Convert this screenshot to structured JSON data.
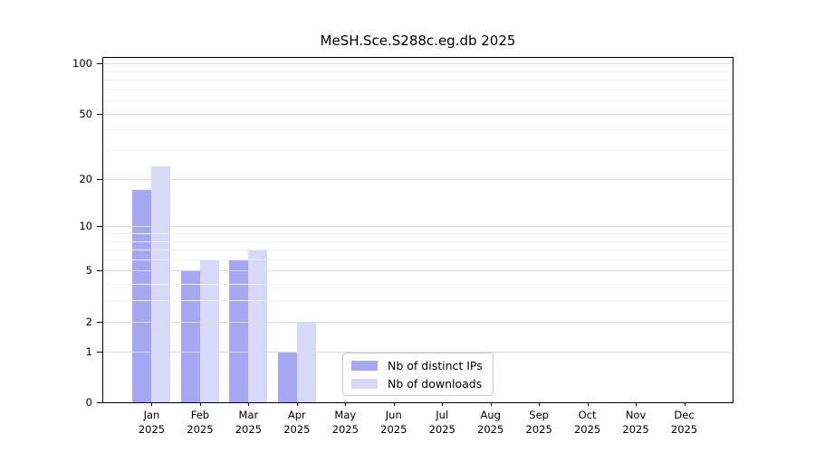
{
  "chart_data": {
    "type": "bar",
    "title": "MeSH.Sce.S288c.eg.db 2025",
    "categories": [
      "Jan",
      "Feb",
      "Mar",
      "Apr",
      "May",
      "Jun",
      "Jul",
      "Aug",
      "Sep",
      "Oct",
      "Nov",
      "Dec"
    ],
    "x_tick_year": "2025",
    "series": [
      {
        "name": "Nb of distinct IPs",
        "color": "#a6a6f2",
        "values": [
          17,
          5,
          6,
          1,
          0,
          0,
          0,
          0,
          0,
          0,
          0,
          0
        ]
      },
      {
        "name": "Nb of downloads",
        "color": "#d8d8f8",
        "values": [
          24,
          6,
          7,
          2,
          0,
          0,
          0,
          0,
          0,
          0,
          0,
          0
        ]
      }
    ],
    "y_axis": {
      "scale": "log1p",
      "ticks": [
        0,
        1,
        2,
        5,
        10,
        20,
        50,
        100
      ],
      "minor_ticks": [
        3,
        4,
        6,
        7,
        8,
        9,
        30,
        40,
        60,
        70,
        80,
        90
      ],
      "ylim": [
        0,
        108
      ]
    },
    "xlabel": "",
    "ylabel": "",
    "grid": true,
    "legend_position": "bottom-center"
  },
  "colors": {
    "grid_major": "#dcdcdc",
    "grid_minor": "#efefef",
    "spine": "#000000",
    "background": "#ffffff"
  }
}
